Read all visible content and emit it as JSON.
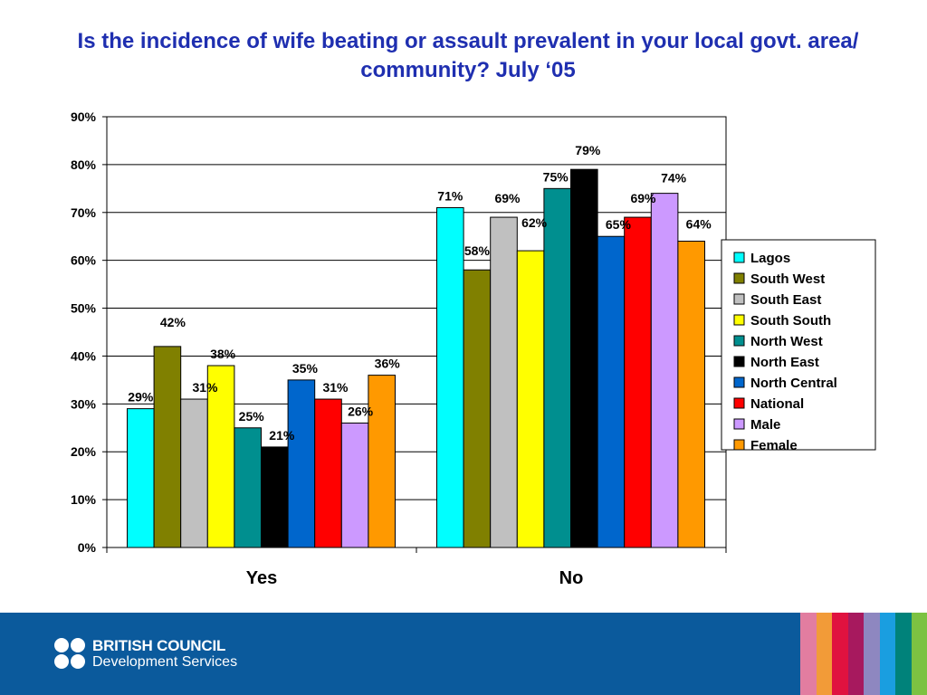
{
  "title": "Is the incidence of wife beating or assault prevalent in your local govt. area/ community? July ‘05",
  "chart_data": {
    "type": "bar",
    "title": "Is the incidence of wife beating or assault prevalent in your local govt. area/ community? July ‘05",
    "categories": [
      "Yes",
      "No"
    ],
    "ylim": [
      0,
      90
    ],
    "yticks": [
      0,
      10,
      20,
      30,
      40,
      50,
      60,
      70,
      80,
      90
    ],
    "ytick_labels": [
      "0%",
      "10%",
      "20%",
      "30%",
      "40%",
      "50%",
      "60%",
      "70%",
      "80%",
      "90%"
    ],
    "grid": true,
    "legend_position": "right",
    "series": [
      {
        "name": "Lagos",
        "color": "#00ffff",
        "values": [
          29,
          71
        ],
        "labels": [
          "29%",
          "71%"
        ]
      },
      {
        "name": "South West",
        "color": "#808000",
        "values": [
          42,
          58
        ],
        "labels": [
          "42%",
          "58%"
        ]
      },
      {
        "name": "South East",
        "color": "#c0c0c0",
        "values": [
          31,
          69
        ],
        "labels": [
          "31%",
          "69%"
        ]
      },
      {
        "name": "South South",
        "color": "#ffff00",
        "values": [
          38,
          62
        ],
        "labels": [
          "38%",
          "62%"
        ]
      },
      {
        "name": "North West",
        "color": "#008f8f",
        "values": [
          25,
          75
        ],
        "labels": [
          "25%",
          "75%"
        ]
      },
      {
        "name": "North East",
        "color": "#000000",
        "values": [
          21,
          79
        ],
        "labels": [
          "21%",
          "79%"
        ]
      },
      {
        "name": "North Central",
        "color": "#0066cc",
        "values": [
          35,
          65
        ],
        "labels": [
          "35%",
          "65%"
        ]
      },
      {
        "name": "National",
        "color": "#ff0000",
        "values": [
          31,
          69
        ],
        "labels": [
          "31%",
          "69%"
        ]
      },
      {
        "name": "Male",
        "color": "#cc99ff",
        "values": [
          26,
          74
        ],
        "labels": [
          "26%",
          "74%"
        ]
      },
      {
        "name": "Female",
        "color": "#ff9900",
        "values": [
          36,
          64
        ],
        "labels": [
          "36%",
          "64%"
        ]
      }
    ]
  },
  "footer": {
    "logo_line1": "BRITISH COUNCIL",
    "logo_line2": "Development Services",
    "stripe_colors": [
      "#e27da0",
      "#f29b38",
      "#e0123f",
      "#a7195e",
      "#8e87c0",
      "#1a9ee0",
      "#00827a",
      "#7cc242"
    ]
  }
}
